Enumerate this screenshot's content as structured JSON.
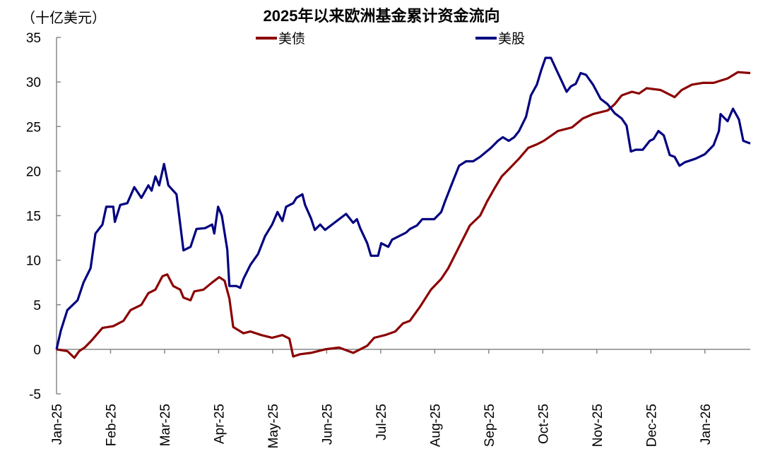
{
  "chart_data": {
    "type": "line",
    "title": "2025年以来欧洲基金累计资金流向",
    "unit_label": "（十亿美元）",
    "xlabel": "",
    "ylabel": "十亿美元",
    "x_unit": "months since Jan-25",
    "xlim": [
      0,
      12.84
    ],
    "ylim": [
      -5,
      35
    ],
    "yticks": [
      -5,
      0,
      5,
      10,
      15,
      20,
      25,
      30,
      35
    ],
    "ytick_labels": [
      "-5",
      "0",
      "5",
      "10",
      "15",
      "20",
      "25",
      "30",
      "35"
    ],
    "negative_tick_color": "#e00000",
    "xtick_labels": [
      "Jan-25",
      "Feb-25",
      "Mar-25",
      "Apr-25",
      "May-25",
      "Jun-25",
      "Jul-25",
      "Aug-25",
      "Sep-25",
      "Oct-25",
      "Nov-25",
      "Dec-25",
      "Jan-26"
    ],
    "legend_placement": "top",
    "grid": false,
    "series": [
      {
        "name": "美债",
        "color": "#8b0000",
        "x": [
          0,
          0.2,
          0.33,
          0.42,
          0.52,
          0.65,
          0.85,
          1.05,
          1.24,
          1.37,
          1.57,
          1.7,
          1.83,
          1.96,
          2.05,
          2.16,
          2.29,
          2.35,
          2.48,
          2.55,
          2.72,
          2.88,
          3.01,
          3.11,
          3.2,
          3.27,
          3.46,
          3.59,
          3.79,
          3.99,
          4.18,
          4.31,
          4.38,
          4.51,
          4.71,
          4.97,
          5.23,
          5.49,
          5.75,
          5.88,
          6.08,
          6.27,
          6.41,
          6.54,
          6.73,
          6.93,
          7.12,
          7.25,
          7.45,
          7.65,
          7.84,
          7.97,
          8.1,
          8.24,
          8.37,
          8.56,
          8.73,
          8.89,
          9.02,
          9.28,
          9.54,
          9.74,
          9.93,
          10.2,
          10.33,
          10.46,
          10.65,
          10.78,
          10.92,
          11.18,
          11.44,
          11.57,
          11.76,
          11.96,
          12.16,
          12.42,
          12.61,
          12.84
        ],
        "y": [
          0,
          -0.2,
          -0.95,
          -0.2,
          0.2,
          1,
          2.4,
          2.6,
          3.2,
          4.4,
          5,
          6.3,
          6.7,
          8.2,
          8.4,
          7.1,
          6.7,
          5.8,
          5.5,
          6.5,
          6.7,
          7.5,
          8.1,
          7.7,
          5.7,
          2.5,
          1.8,
          2,
          1.6,
          1.3,
          1.6,
          1.2,
          -0.8,
          -0.55,
          -0.4,
          0,
          0.2,
          -0.4,
          0.4,
          1.3,
          1.6,
          2,
          2.9,
          3.2,
          4.8,
          6.7,
          7.9,
          9.1,
          11.5,
          13.9,
          15,
          16.6,
          18,
          19.4,
          20.2,
          21.4,
          22.6,
          23,
          23.4,
          24.5,
          24.9,
          25.9,
          26.4,
          26.8,
          27.5,
          28.5,
          28.9,
          28.7,
          29.3,
          29.1,
          28.3,
          29.1,
          29.7,
          29.9,
          29.9,
          30.4,
          31.1,
          31
        ]
      },
      {
        "name": "美股",
        "color": "#000080",
        "x": [
          0,
          0.08,
          0.2,
          0.39,
          0.5,
          0.63,
          0.72,
          0.85,
          0.92,
          1.05,
          1.08,
          1.18,
          1.31,
          1.44,
          1.57,
          1.7,
          1.76,
          1.83,
          1.9,
          1.99,
          2.07,
          2.22,
          2.35,
          2.48,
          2.59,
          2.75,
          2.88,
          2.92,
          2.99,
          3.06,
          3.16,
          3.2,
          3.33,
          3.4,
          3.46,
          3.59,
          3.73,
          3.86,
          3.99,
          4.09,
          4.18,
          4.25,
          4.38,
          4.44,
          4.55,
          4.6,
          4.71,
          4.78,
          4.88,
          4.97,
          5.1,
          5.23,
          5.36,
          5.49,
          5.56,
          5.62,
          5.75,
          5.82,
          5.95,
          6.01,
          6.14,
          6.21,
          6.34,
          6.47,
          6.54,
          6.67,
          6.77,
          6.86,
          6.99,
          7.12,
          7.19,
          7.32,
          7.45,
          7.58,
          7.71,
          7.84,
          8.04,
          8.17,
          8.26,
          8.37,
          8.47,
          8.56,
          8.69,
          8.78,
          8.89,
          8.97,
          9.05,
          9.15,
          9.25,
          9.35,
          9.44,
          9.52,
          9.61,
          9.7,
          9.8,
          9.93,
          10.07,
          10.2,
          10.33,
          10.46,
          10.55,
          10.63,
          10.72,
          10.85,
          10.98,
          11.05,
          11.14,
          11.24,
          11.35,
          11.44,
          11.53,
          11.63,
          11.83,
          12,
          12.16,
          12.26,
          12.29,
          12.42,
          12.52,
          12.63,
          12.71,
          12.84
        ],
        "y": [
          0,
          2.1,
          4.4,
          5.5,
          7.5,
          9.1,
          13,
          14,
          16,
          16,
          14.3,
          16.2,
          16.4,
          18.2,
          17,
          18.4,
          17.8,
          19.4,
          18.4,
          20.8,
          18.4,
          17.4,
          11.1,
          11.5,
          13.5,
          13.6,
          14,
          13,
          16,
          15,
          11.2,
          7.1,
          7.1,
          6.9,
          7.9,
          9.5,
          10.7,
          12.7,
          14,
          15.4,
          14.4,
          16,
          16.4,
          17,
          17.4,
          16.2,
          14.7,
          13.4,
          14,
          13.4,
          14,
          14.6,
          15.2,
          14.2,
          14.6,
          13.6,
          11.9,
          10.5,
          10.5,
          11.9,
          11.5,
          12.3,
          12.7,
          13.1,
          13.5,
          13.9,
          14.6,
          14.6,
          14.6,
          15.4,
          16.6,
          18.6,
          20.6,
          21.1,
          21.1,
          21.6,
          22.6,
          23.4,
          23.8,
          23.4,
          23.8,
          24.5,
          26.1,
          28.5,
          29.7,
          31.3,
          32.7,
          32.7,
          31.4,
          30.1,
          28.9,
          29.5,
          29.8,
          31,
          30.8,
          29.7,
          28.1,
          27.5,
          26.5,
          25.9,
          25.1,
          22.2,
          22.4,
          22.4,
          23.4,
          23.6,
          24.5,
          24,
          21.8,
          21.6,
          20.6,
          21,
          21.4,
          21.9,
          22.9,
          24.5,
          26.4,
          25.6,
          27,
          25.8,
          23.4,
          23.1
        ]
      }
    ]
  }
}
